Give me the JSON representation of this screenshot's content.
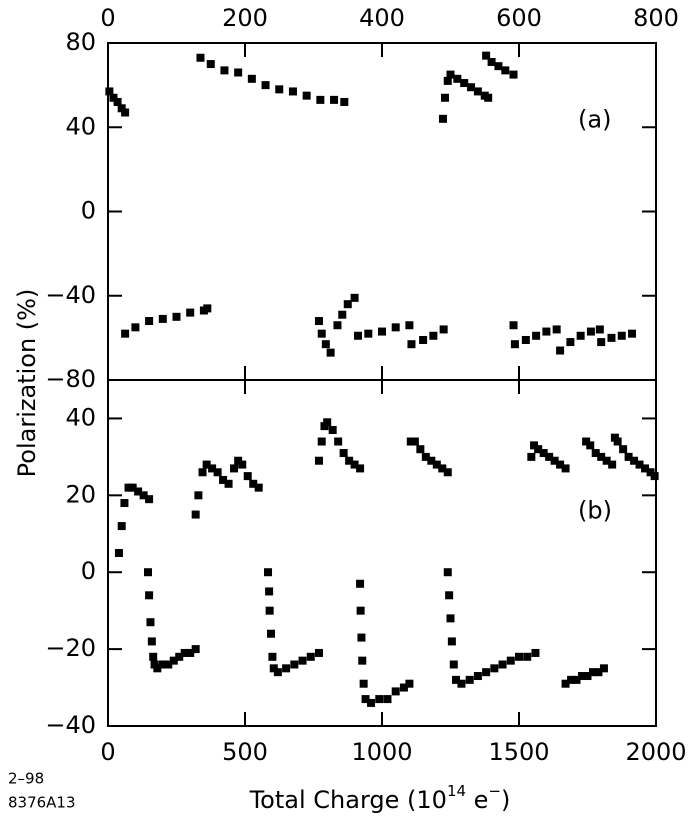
{
  "y_label": "Polarization  (%)",
  "x_label_parts": [
    "Total Charge  (10",
    "14",
    " e",
    "−",
    ")"
  ],
  "corner_notes": [
    "2–98",
    "8376A13"
  ],
  "chart_data": [
    {
      "type": "scatter",
      "panel_label": "(a)",
      "xaxis_position": "top",
      "xlim": [
        0,
        800
      ],
      "xticks": [
        0,
        200,
        400,
        600,
        800
      ],
      "ylim": [
        -80,
        80
      ],
      "yticks": [
        {
          "value": -80,
          "label": "−80"
        },
        {
          "value": -40,
          "label": "−40"
        },
        0,
        40,
        80
      ],
      "series": [
        {
          "color": "#000000",
          "x": [
            2,
            8,
            14,
            20,
            25,
            135,
            150,
            170,
            190,
            210,
            230,
            250,
            270,
            290,
            310,
            330,
            345,
            489,
            492,
            496,
            500,
            510,
            520,
            530,
            540,
            550,
            555,
            552,
            560,
            570,
            580,
            592,
            25,
            40,
            60,
            80,
            100,
            120,
            140,
            145,
            308,
            312,
            318,
            325,
            335,
            342,
            350,
            360,
            365,
            380,
            400,
            420,
            440,
            443,
            460,
            475,
            490,
            592,
            594,
            610,
            625,
            640,
            655,
            660,
            675,
            690,
            705,
            718,
            720,
            735,
            750,
            765
          ],
          "y": [
            57,
            54,
            52,
            49,
            47,
            73,
            70,
            67,
            66,
            63,
            60,
            58,
            57,
            55,
            53,
            53,
            52,
            44,
            54,
            62,
            65,
            63,
            61,
            59,
            57,
            55,
            54,
            74,
            71,
            69,
            67,
            65,
            -58,
            -55,
            -52,
            -51,
            -50,
            -48,
            -47,
            -46,
            -52,
            -58,
            -63,
            -67,
            -54,
            -49,
            -44,
            -41,
            -59,
            -58,
            -57,
            -55,
            -54,
            -63,
            -61,
            -59,
            -56,
            -54,
            -63,
            -61,
            -59,
            -57,
            -56,
            -66,
            -62,
            -59,
            -57,
            -56,
            -62,
            -60,
            -59,
            -58
          ]
        }
      ]
    },
    {
      "type": "scatter",
      "panel_label": "(b)",
      "xaxis_position": "bottom",
      "xlim": [
        0,
        2000
      ],
      "xticks": [
        0,
        500,
        1000,
        1500,
        2000
      ],
      "ylim": [
        -40,
        50
      ],
      "yticks": [
        {
          "value": -40,
          "label": "−40"
        },
        {
          "value": -20,
          "label": "−20"
        },
        0,
        20,
        40
      ],
      "series": [
        {
          "color": "#000000",
          "x": [
            40,
            50,
            60,
            75,
            90,
            110,
            130,
            150,
            320,
            330,
            345,
            360,
            380,
            400,
            420,
            440,
            460,
            475,
            490,
            510,
            530,
            550,
            770,
            780,
            790,
            800,
            820,
            840,
            860,
            880,
            900,
            920,
            1105,
            1120,
            1140,
            1160,
            1180,
            1200,
            1220,
            1240,
            1545,
            1555,
            1570,
            1590,
            1610,
            1630,
            1650,
            1670,
            1745,
            1760,
            1780,
            1800,
            1820,
            1840,
            1850,
            1860,
            1880,
            1900,
            1920,
            1940,
            1960,
            1980,
            1995,
            146,
            150,
            155,
            160,
            165,
            170,
            180,
            200,
            220,
            240,
            260,
            280,
            300,
            320,
            584,
            588,
            590,
            595,
            600,
            605,
            620,
            650,
            680,
            710,
            740,
            770,
            920,
            922,
            925,
            928,
            933,
            940,
            960,
            990,
            1020,
            1050,
            1080,
            1100,
            1240,
            1245,
            1250,
            1255,
            1262,
            1270,
            1290,
            1320,
            1350,
            1380,
            1410,
            1440,
            1470,
            1500,
            1530,
            1560,
            1670,
            1690,
            1710,
            1730,
            1750,
            1770,
            1790,
            1810
          ],
          "y": [
            5,
            12,
            18,
            22,
            22,
            21,
            20,
            19,
            15,
            20,
            26,
            28,
            27,
            26,
            24,
            23,
            27,
            29,
            28,
            25,
            23,
            22,
            29,
            34,
            38,
            39,
            37,
            34,
            31,
            29,
            28,
            27,
            34,
            34,
            32,
            30,
            29,
            28,
            27,
            26,
            30,
            33,
            32,
            31,
            30,
            29,
            28,
            27,
            34,
            33,
            31,
            30,
            29,
            28,
            35,
            34,
            32,
            30,
            29,
            28,
            27,
            26,
            25,
            0,
            -6,
            -13,
            -18,
            -22,
            -24,
            -25,
            -24,
            -24,
            -23,
            -22,
            -21,
            -21,
            -20,
            0,
            -5,
            -10,
            -16,
            -22,
            -25,
            -26,
            -25,
            -24,
            -23,
            -22,
            -21,
            -3,
            -10,
            -17,
            -23,
            -29,
            -33,
            -34,
            -33,
            -33,
            -31,
            -30,
            -29,
            0,
            -6,
            -12,
            -18,
            -24,
            -28,
            -29,
            -28,
            -27,
            -26,
            -25,
            -24,
            -23,
            -22,
            -22,
            -21,
            -29,
            -28,
            -28,
            -27,
            -27,
            -26,
            -26,
            -25
          ]
        }
      ]
    }
  ]
}
